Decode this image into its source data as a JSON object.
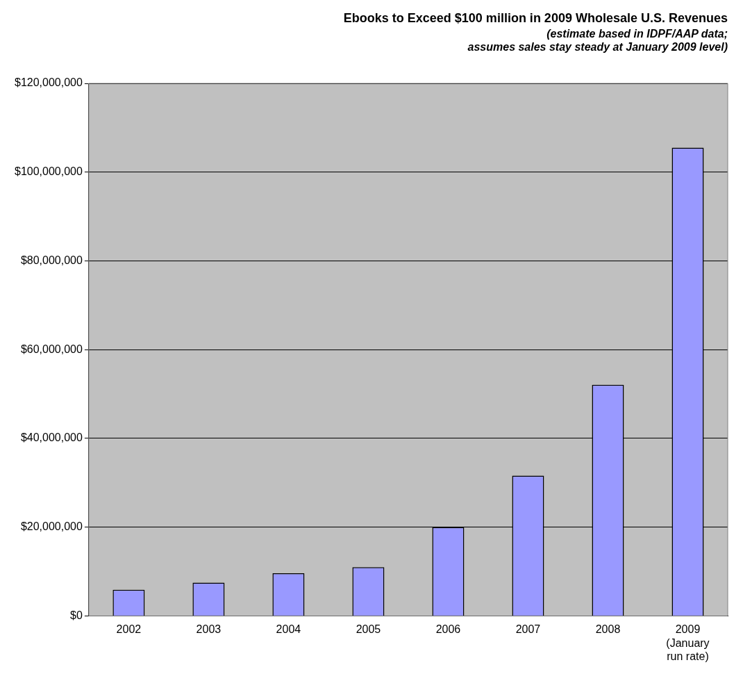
{
  "chart_data": {
    "type": "bar",
    "title": "Ebooks to Exceed $100 million in 2009 Wholesale U.S. Revenues",
    "subtitle": "(estimate based in IDPF/AAP data;\nassumes sales stay steady at January 2009 level)",
    "categories": [
      "2002",
      "2003",
      "2004",
      "2005",
      "2006",
      "2007",
      "2008",
      "2009\n(January\nrun rate)"
    ],
    "values": [
      5900000,
      7500000,
      9600000,
      11000000,
      20000000,
      31600000,
      52100000,
      105500000
    ],
    "color": "#9999ff",
    "ylim": [
      0,
      120000000
    ],
    "yticks": [
      {
        "value": 0,
        "label": "$0"
      },
      {
        "value": 20000000,
        "label": "$20,000,000"
      },
      {
        "value": 40000000,
        "label": "$40,000,000"
      },
      {
        "value": 60000000,
        "label": "$60,000,000"
      },
      {
        "value": 80000000,
        "label": "$80,000,000"
      },
      {
        "value": 100000000,
        "label": "$100,000,000"
      },
      {
        "value": 120000000,
        "label": "$120,000,000"
      }
    ],
    "grid": "y",
    "legend": false
  }
}
